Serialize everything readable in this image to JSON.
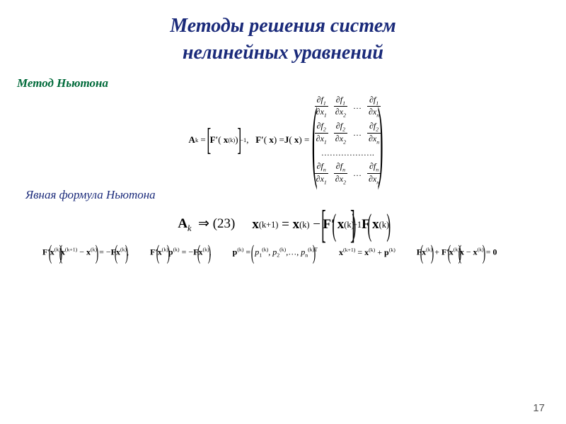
{
  "title_line1": "Методы решения систем",
  "title_line2": "нелинейных уравнений",
  "subtitle": "Метод Ньютона",
  "label_explicit": "Явная формула Ньютона",
  "colors": {
    "title": "#1a2a7a",
    "subtitle": "#006a3a",
    "text": "#000000",
    "bg": "#ffffff"
  },
  "page_number": "17",
  "eq": {
    "Ak": "A",
    "Ak_sub": "k",
    "Fprime": "F′",
    "J": "J",
    "x": "x",
    "sup_k": "(k)",
    "sup_k1": "(k+1)",
    "inv": "−1",
    "arrow": "⇒ (23)",
    "p": "p",
    "p1": "p₁",
    "p2": "p₂",
    "pn": "pₙ",
    "T": "T",
    "zero": "0"
  },
  "jacobian": {
    "rows": [
      "1",
      "2",
      "n"
    ],
    "cols": [
      "1",
      "2",
      "n"
    ],
    "dots": "…",
    "rowdots": "………………."
  }
}
